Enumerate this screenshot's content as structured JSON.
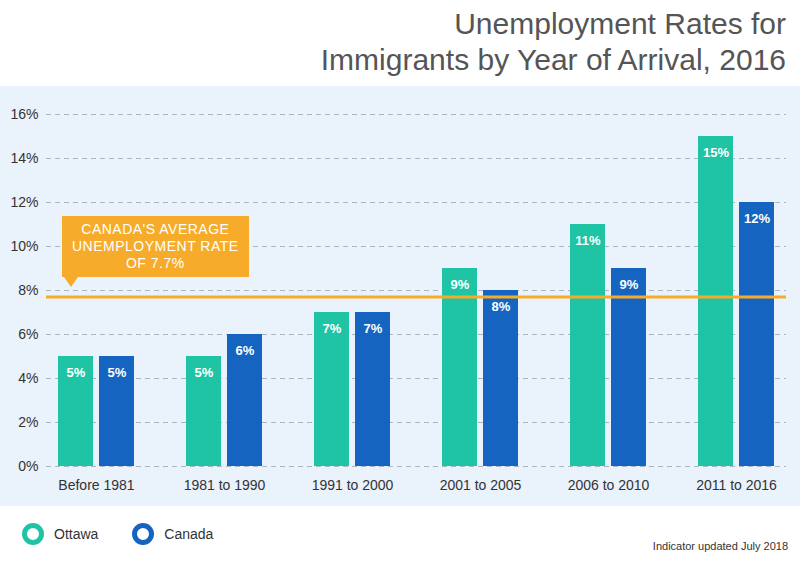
{
  "chart_data": {
    "type": "bar",
    "title": "Unemployment Rates for Immigrants by Year of Arrival, 2016",
    "categories": [
      "Before 1981",
      "1981 to 1990",
      "1991 to 2000",
      "2001 to 2005",
      "2006 to 2010",
      "2011 to 2016"
    ],
    "series": [
      {
        "name": "Ottawa",
        "color": "#1fc4a4",
        "values": [
          5,
          5,
          7,
          9,
          11,
          15
        ],
        "value_labels": [
          "5%",
          "5%",
          "7%",
          "9%",
          "11%",
          "15%"
        ]
      },
      {
        "name": "Canada",
        "color": "#1565c0",
        "values": [
          5,
          6,
          7,
          8,
          9,
          12
        ],
        "value_labels": [
          "5%",
          "6%",
          "7%",
          "8%",
          "9%",
          "12%"
        ]
      }
    ],
    "ylim": [
      0,
      16
    ],
    "yticks": [
      {
        "value": 0,
        "label": "0%"
      },
      {
        "value": 2,
        "label": "2%"
      },
      {
        "value": 4,
        "label": "4%"
      },
      {
        "value": 6,
        "label": "6%"
      },
      {
        "value": 8,
        "label": "8%"
      },
      {
        "value": 10,
        "label": "10%"
      },
      {
        "value": 12,
        "label": "12%"
      },
      {
        "value": 14,
        "label": "14%"
      },
      {
        "value": 16,
        "label": "16%"
      }
    ],
    "grid": true,
    "data_labels": true,
    "legend": "bottom-left",
    "annotations": [
      {
        "lines": [
          "CANADA'S AVERAGE",
          "UNEMPLOYMENT RATE",
          "OF 7.7%"
        ],
        "y": 7.7,
        "color": "#f7ab2a"
      }
    ],
    "note": "Indicator updated July 2018"
  }
}
